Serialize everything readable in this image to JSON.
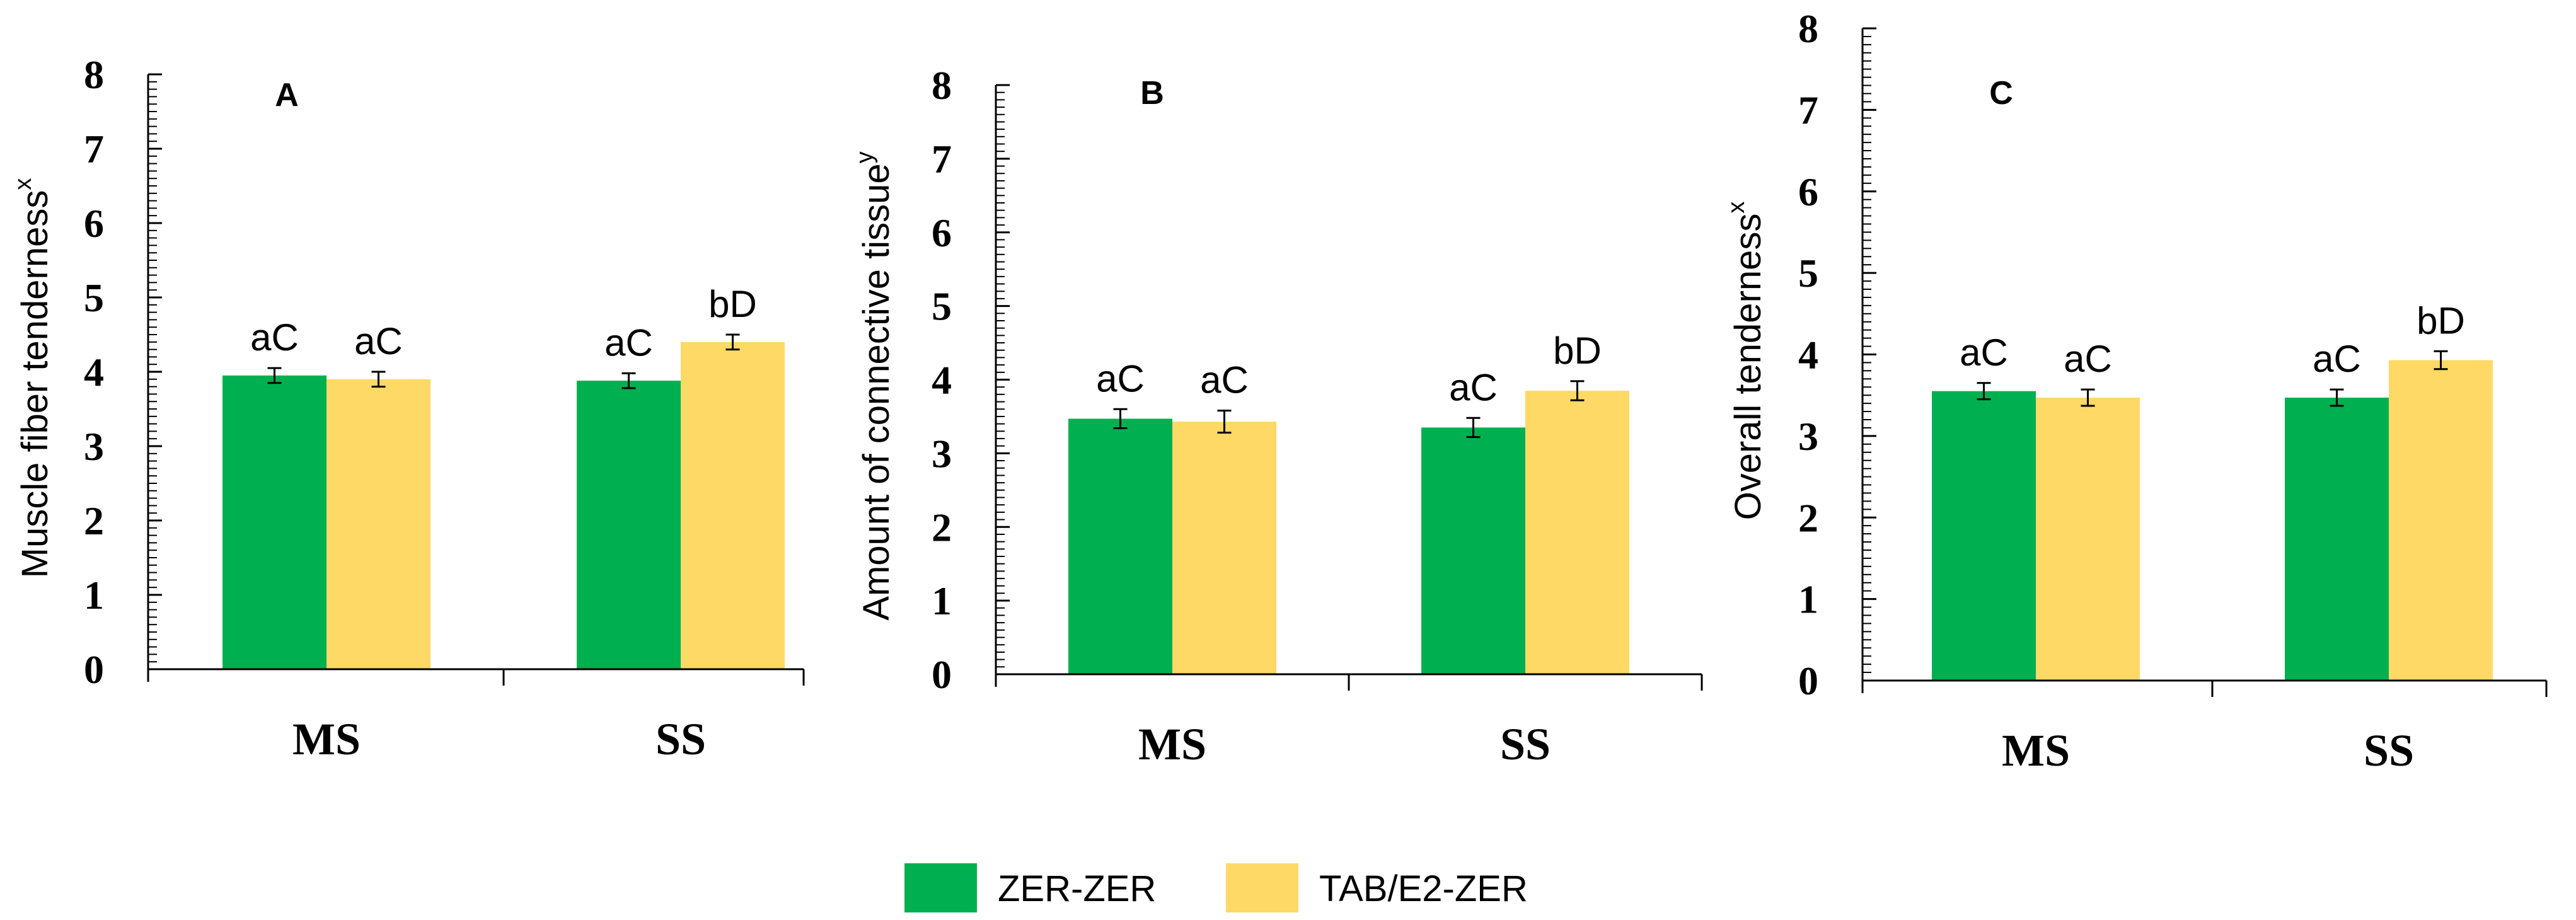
{
  "colors": {
    "zer": "#00b050",
    "tab": "#ffd966",
    "axis": "#000000"
  },
  "legend": {
    "items": [
      {
        "name": "ZER-ZER",
        "color": "#00b050"
      },
      {
        "name": "TAB/E2-ZER",
        "color": "#ffd966"
      }
    ]
  },
  "chart_data": [
    {
      "type": "bar",
      "title": "A",
      "ylabel": "Muscle fiber tenderness",
      "ylabel_superscript": "x",
      "ylim": [
        0,
        8
      ],
      "yticks": [
        0,
        1,
        2,
        3,
        4,
        5,
        6,
        7,
        8
      ],
      "categories": [
        "MS",
        "SS"
      ],
      "series": [
        {
          "name": "ZER-ZER",
          "values": [
            3.95,
            3.88
          ],
          "errors": [
            0.1,
            0.1
          ],
          "labels": [
            "aC",
            "aC"
          ]
        },
        {
          "name": "TAB/E2-ZER",
          "values": [
            3.9,
            4.4
          ],
          "errors": [
            0.1,
            0.1
          ],
          "labels": [
            "aC",
            "bD"
          ]
        }
      ]
    },
    {
      "type": "bar",
      "title": "B",
      "ylabel": "Amount of connective tissue",
      "ylabel_superscript": "y",
      "ylim": [
        0,
        8
      ],
      "yticks": [
        0,
        1,
        2,
        3,
        4,
        5,
        6,
        7,
        8
      ],
      "categories": [
        "MS",
        "SS"
      ],
      "series": [
        {
          "name": "ZER-ZER",
          "values": [
            3.47,
            3.35
          ],
          "errors": [
            0.13,
            0.13
          ],
          "labels": [
            "aC",
            "aC"
          ]
        },
        {
          "name": "TAB/E2-ZER",
          "values": [
            3.43,
            3.85
          ],
          "errors": [
            0.15,
            0.13
          ],
          "labels": [
            "aC",
            "bD"
          ]
        }
      ]
    },
    {
      "type": "bar",
      "title": "C",
      "ylabel": "Overall tenderness",
      "ylabel_superscript": "x",
      "ylim": [
        0,
        8
      ],
      "yticks": [
        0,
        1,
        2,
        3,
        4,
        5,
        6,
        7,
        8
      ],
      "categories": [
        "MS",
        "SS"
      ],
      "series": [
        {
          "name": "ZER-ZER",
          "values": [
            3.55,
            3.47
          ],
          "errors": [
            0.1,
            0.1
          ],
          "labels": [
            "aC",
            "aC"
          ]
        },
        {
          "name": "TAB/E2-ZER",
          "values": [
            3.47,
            3.93
          ],
          "errors": [
            0.1,
            0.11
          ],
          "labels": [
            "aC",
            "bD"
          ]
        }
      ]
    }
  ]
}
